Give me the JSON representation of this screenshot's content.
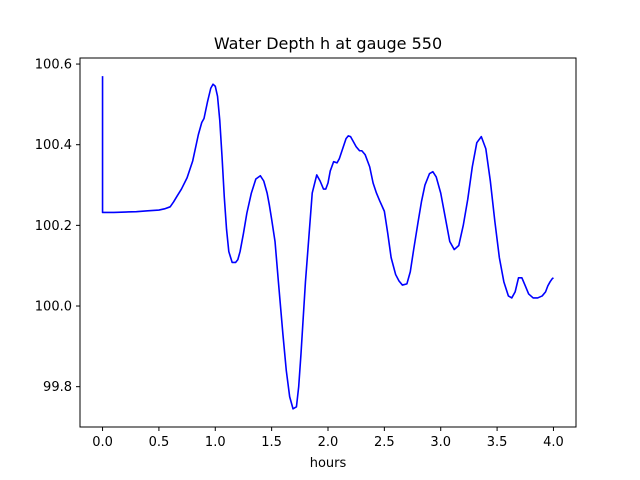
{
  "chart_data": {
    "type": "line",
    "title": "Water Depth h at gauge 550",
    "xlabel": "hours",
    "ylabel": "",
    "xlim": [
      -0.2,
      4.2
    ],
    "ylim": [
      99.7,
      100.615
    ],
    "xticks": [
      0.0,
      0.5,
      1.0,
      1.5,
      2.0,
      2.5,
      3.0,
      3.5,
      4.0
    ],
    "xtick_labels": [
      "0.0",
      "0.5",
      "1.0",
      "1.5",
      "2.0",
      "2.5",
      "3.0",
      "3.5",
      "4.0"
    ],
    "yticks": [
      99.8,
      100.0,
      100.2,
      100.4,
      100.6
    ],
    "ytick_labels": [
      "99.8",
      "100.0",
      "100.2",
      "100.4",
      "100.6"
    ],
    "grid": false,
    "legend": "none",
    "series": [
      {
        "color": "#0000ff",
        "x": [
          0.0,
          0.0,
          0.01,
          0.1,
          0.2,
          0.3,
          0.4,
          0.5,
          0.55,
          0.6,
          0.63,
          0.66,
          0.7,
          0.75,
          0.8,
          0.85,
          0.88,
          0.9,
          0.93,
          0.96,
          0.98,
          1.0,
          1.02,
          1.04,
          1.06,
          1.08,
          1.1,
          1.12,
          1.15,
          1.18,
          1.2,
          1.22,
          1.25,
          1.28,
          1.32,
          1.36,
          1.4,
          1.43,
          1.46,
          1.48,
          1.5,
          1.53,
          1.56,
          1.6,
          1.63,
          1.66,
          1.69,
          1.72,
          1.74,
          1.76,
          1.78,
          1.8,
          1.83,
          1.86,
          1.9,
          1.93,
          1.96,
          1.98,
          2.0,
          2.02,
          2.05,
          2.08,
          2.1,
          2.13,
          2.16,
          2.18,
          2.2,
          2.22,
          2.25,
          2.28,
          2.3,
          2.33,
          2.37,
          2.4,
          2.43,
          2.46,
          2.5,
          2.53,
          2.56,
          2.6,
          2.63,
          2.66,
          2.7,
          2.73,
          2.76,
          2.8,
          2.83,
          2.86,
          2.9,
          2.93,
          2.96,
          3.0,
          3.04,
          3.08,
          3.12,
          3.16,
          3.2,
          3.24,
          3.28,
          3.32,
          3.36,
          3.4,
          3.44,
          3.48,
          3.52,
          3.56,
          3.6,
          3.63,
          3.66,
          3.69,
          3.72,
          3.75,
          3.78,
          3.82,
          3.86,
          3.9,
          3.93,
          3.95,
          3.97,
          3.99,
          4.0
        ],
        "y": [
          100.57,
          100.232,
          100.232,
          100.232,
          100.233,
          100.234,
          100.236,
          100.238,
          100.241,
          100.246,
          100.258,
          100.272,
          100.29,
          100.318,
          100.36,
          100.425,
          100.455,
          100.465,
          100.505,
          100.54,
          100.55,
          100.545,
          100.52,
          100.46,
          100.37,
          100.27,
          100.19,
          100.135,
          100.108,
          100.108,
          100.115,
          100.135,
          100.18,
          100.23,
          100.28,
          100.315,
          100.323,
          100.31,
          100.28,
          100.25,
          100.215,
          100.16,
          100.06,
          99.93,
          99.84,
          99.775,
          99.745,
          99.75,
          99.8,
          99.88,
          99.97,
          100.06,
          100.17,
          100.28,
          100.325,
          100.31,
          100.29,
          100.29,
          100.305,
          100.335,
          100.358,
          100.355,
          100.365,
          100.39,
          100.415,
          100.422,
          100.42,
          100.41,
          100.395,
          100.385,
          100.385,
          100.375,
          100.345,
          100.305,
          100.28,
          100.26,
          100.235,
          100.18,
          100.12,
          100.078,
          100.062,
          100.052,
          100.055,
          100.085,
          100.14,
          100.21,
          100.26,
          100.3,
          100.328,
          100.333,
          100.32,
          100.28,
          100.22,
          100.16,
          100.14,
          100.15,
          100.2,
          100.265,
          100.345,
          100.405,
          100.42,
          100.39,
          100.31,
          100.21,
          100.12,
          100.06,
          100.025,
          100.02,
          100.035,
          100.07,
          100.07,
          100.05,
          100.03,
          100.02,
          100.02,
          100.025,
          100.035,
          100.05,
          100.06,
          100.068,
          100.07
        ]
      }
    ]
  }
}
